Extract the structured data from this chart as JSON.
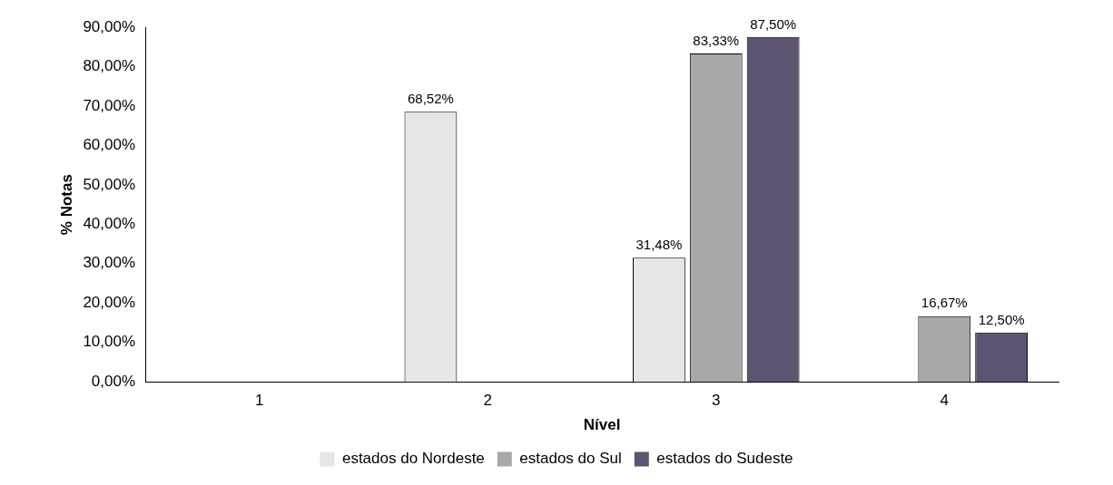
{
  "chart_data": {
    "type": "bar",
    "xlabel": "Nível",
    "ylabel": "% Notas",
    "categories": [
      "1",
      "2",
      "3",
      "4"
    ],
    "series": [
      {
        "name": "estados do Nordeste",
        "color": "#e6e6e6",
        "values": [
          0,
          68.52,
          31.48,
          0
        ],
        "value_labels": [
          null,
          "68,52%",
          "31,48%",
          null
        ]
      },
      {
        "name": "estados do Sul",
        "color": "#a8a8a8",
        "values": [
          0,
          0,
          83.33,
          16.67
        ],
        "value_labels": [
          null,
          null,
          "83,33%",
          "16,67%"
        ]
      },
      {
        "name": "estados do Sudeste",
        "color": "#5c5470",
        "values": [
          0,
          0,
          87.5,
          12.5
        ],
        "value_labels": [
          null,
          null,
          "87,50%",
          "12,50%"
        ]
      }
    ],
    "ylim": [
      0,
      90
    ],
    "yticks": [
      {
        "value": 0,
        "label": "0,00%"
      },
      {
        "value": 10,
        "label": "10,00%"
      },
      {
        "value": 20,
        "label": "20,00%"
      },
      {
        "value": 30,
        "label": "30,00%"
      },
      {
        "value": 40,
        "label": "40,00%"
      },
      {
        "value": 50,
        "label": "50,00%"
      },
      {
        "value": 60,
        "label": "60,00%"
      },
      {
        "value": 70,
        "label": "70,00%"
      },
      {
        "value": 80,
        "label": "80,00%"
      },
      {
        "value": 90,
        "label": "90,00%"
      }
    ],
    "grid": false,
    "legend": "bottom"
  }
}
